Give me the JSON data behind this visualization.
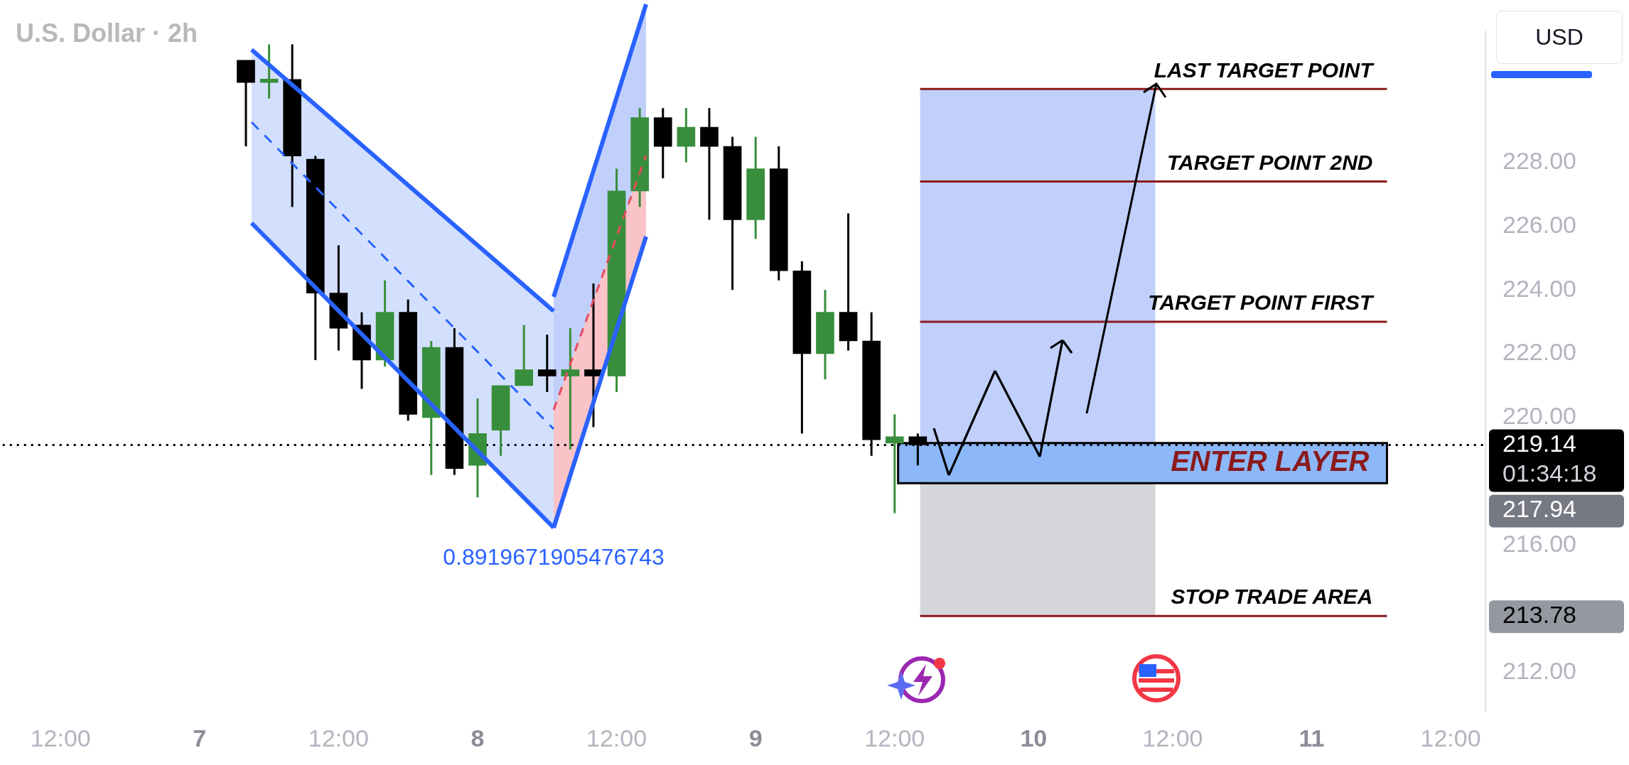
{
  "chart_data": {
    "type": "candlestick",
    "title": "U.S. Dollar · 2h",
    "categories": [
      null,
      null,
      "12:00",
      null,
      null,
      null,
      null,
      null,
      "7",
      null,
      null,
      null,
      null,
      null,
      "12:00",
      null,
      null,
      null,
      null,
      null,
      "8",
      null,
      null,
      null,
      null,
      null,
      "12:00",
      null,
      null,
      null,
      null,
      null,
      "9",
      null,
      null,
      null,
      null,
      null,
      "12:00",
      null,
      null,
      null,
      null,
      null,
      "10",
      null,
      null,
      null,
      null,
      null,
      "12:00",
      null,
      null,
      null,
      null,
      null,
      "11",
      null,
      null,
      null,
      null,
      null,
      "12:00",
      null
    ],
    "ohlc": [
      null,
      null,
      null,
      null,
      null,
      null,
      null,
      null,
      null,
      null,
      [
        231.2,
        231.2,
        228.5,
        230.5
      ],
      [
        230.5,
        231.7,
        230.0,
        230.6
      ],
      [
        230.6,
        231.7,
        226.6,
        228.2
      ],
      [
        228.1,
        228.2,
        221.8,
        223.9
      ],
      [
        223.9,
        225.4,
        222.1,
        222.8
      ],
      [
        222.9,
        223.3,
        220.9,
        221.8
      ],
      [
        221.8,
        224.3,
        221.6,
        223.3
      ],
      [
        223.3,
        223.7,
        219.9,
        220.1
      ],
      [
        220.0,
        222.4,
        218.2,
        222.2
      ],
      [
        222.2,
        222.8,
        218.2,
        218.4
      ],
      [
        218.5,
        220.6,
        217.5,
        219.5
      ],
      [
        219.6,
        221.0,
        218.8,
        221.0
      ],
      [
        221.0,
        222.9,
        221.0,
        221.5
      ],
      [
        221.5,
        222.6,
        220.8,
        221.3
      ],
      [
        221.3,
        222.8,
        219.0,
        221.5
      ],
      [
        221.5,
        224.2,
        219.7,
        221.3
      ],
      [
        221.3,
        227.8,
        220.8,
        227.1
      ],
      [
        227.1,
        229.7,
        226.6,
        229.4
      ],
      [
        229.4,
        229.7,
        227.5,
        228.5
      ],
      [
        228.5,
        229.7,
        228.0,
        229.1
      ],
      [
        229.1,
        229.7,
        226.2,
        228.5
      ],
      [
        228.5,
        228.8,
        224.0,
        226.2
      ],
      [
        226.2,
        228.8,
        225.6,
        227.8
      ],
      [
        227.8,
        228.5,
        224.3,
        224.6
      ],
      [
        224.6,
        224.9,
        219.5,
        222.0
      ],
      [
        222.0,
        224.0,
        221.2,
        223.3
      ],
      [
        223.3,
        226.4,
        222.1,
        222.4
      ],
      [
        222.4,
        223.3,
        218.8,
        219.3
      ],
      [
        219.2,
        220.1,
        217.0,
        219.4
      ],
      [
        219.4,
        219.5,
        218.5,
        219.14
      ],
      null,
      null,
      null,
      null,
      null,
      null,
      null,
      null,
      null,
      null,
      null,
      null,
      null,
      null,
      null,
      null,
      null,
      null,
      null,
      null,
      null,
      null,
      null,
      null
    ],
    "colors": [
      null,
      null,
      null,
      null,
      null,
      null,
      null,
      null,
      null,
      null,
      "#000000",
      "#388e3c",
      "#000000",
      "#000000",
      "#000000",
      "#000000",
      "#388e3c",
      "#000000",
      "#388e3c",
      "#000000",
      "#388e3c",
      "#388e3c",
      "#388e3c",
      "#000000",
      "#388e3c",
      "#000000",
      "#388e3c",
      "#388e3c",
      "#000000",
      "#388e3c",
      "#000000",
      "#000000",
      "#388e3c",
      "#000000",
      "#000000",
      "#388e3c",
      "#000000",
      "#000000",
      "#388e3c",
      "#000000",
      null,
      null,
      null,
      null,
      null,
      null,
      null,
      null,
      null,
      null,
      null,
      null,
      null,
      null,
      null,
      null,
      null,
      null,
      null,
      null,
      null,
      null,
      null,
      null
    ],
    "ylim": [
      210.8,
      232.1
    ],
    "yticks": [
      {
        "value": 212,
        "label": "212.00"
      },
      {
        "value": 213.78,
        "label": "213.78"
      },
      {
        "value": 216,
        "label": "216.00"
      },
      {
        "value": 219.14,
        "label": "219.14"
      },
      {
        "value": 220,
        "label": "220.00"
      },
      {
        "value": 222,
        "label": "222.00"
      },
      {
        "value": 224,
        "label": "224.00"
      },
      {
        "value": 226,
        "label": "226.00"
      },
      {
        "value": 228,
        "label": "228.00"
      }
    ],
    "grid": false,
    "legend": false,
    "bands": [
      {
        "axis": "y",
        "from": 219.2,
        "to": 230.3,
        "color": "#c0d0fb"
      },
      {
        "axis": "y",
        "from": 213.78,
        "to": 217.94,
        "color": "#d5d6da"
      },
      {
        "axis": "y",
        "from": 217.94,
        "to": 219.2,
        "label": "ENTER LAYER",
        "color": "#80b0f8"
      }
    ],
    "ref_lines": [
      {
        "axis": "y",
        "value": 230.3,
        "label": "LAST TARGET POINT",
        "color": "#8b1a1a"
      },
      {
        "axis": "y",
        "value": 227.4,
        "label": "TARGET POINT 2ND",
        "color": "#8b1a1a"
      },
      {
        "axis": "y",
        "value": 223.0,
        "label": "TARGET POINT FIRST",
        "color": "#8b1a1a"
      },
      {
        "axis": "y",
        "value": 213.78,
        "label": "STOP TRADE AREA",
        "color": "#8b1a1a"
      },
      {
        "axis": "y",
        "value": 219.14,
        "color": "#000000",
        "line_style": "dotted"
      }
    ],
    "annotations": [
      "USD",
      "0.8919671905476743",
      "01:34:18",
      "217.94"
    ]
  }
}
